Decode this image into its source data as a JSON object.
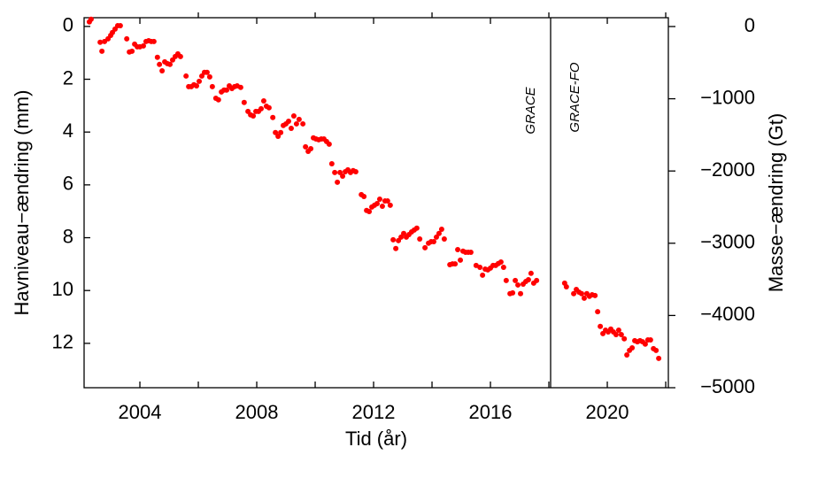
{
  "chart_data": {
    "type": "scatter",
    "xlabel": "Tid (år)",
    "ylabel": "Havniveau−ændring (mm)",
    "y2label": "Masse−ændring (Gt)",
    "annotations": [
      "GRACE",
      "GRACE-FO"
    ],
    "mission_boundary": 2018.06,
    "xlim": [
      2002.09,
      2022.09
    ],
    "xticks": [
      2004,
      2008,
      2012,
      2016,
      2020
    ],
    "xminorticks": [
      2006,
      2010,
      2014,
      2018,
      2022
    ],
    "ylim": [
      13.68,
      -0.33
    ],
    "yticks": [
      0,
      2,
      4,
      6,
      8,
      10,
      12
    ],
    "y2lim": [
      -5000,
      122
    ],
    "y2ticks": [
      0,
      {
        "value": -1000,
        "label": "−1000"
      },
      {
        "value": -2000,
        "label": "−2000"
      },
      {
        "value": -3000,
        "label": "−3000"
      },
      {
        "value": -4000,
        "label": "−4000"
      },
      {
        "value": -5000,
        "label": "−5000"
      }
    ],
    "grid": false,
    "series": [
      {
        "name": "Havniveau",
        "color": "#ff0000",
        "x": [
          2002.27,
          2002.33,
          2002.64,
          2002.7,
          2002.79,
          2002.91,
          2003.0,
          2003.06,
          2003.15,
          2003.24,
          2003.33,
          2003.55,
          2003.64,
          2003.73,
          2003.82,
          2003.91,
          2004.0,
          2004.12,
          2004.21,
          2004.3,
          2004.39,
          2004.48,
          2004.6,
          2004.67,
          2004.76,
          2004.85,
          2004.94,
          2005.03,
          2005.12,
          2005.21,
          2005.3,
          2005.39,
          2005.58,
          2005.67,
          2005.76,
          2005.85,
          2005.94,
          2006.03,
          2006.12,
          2006.21,
          2006.3,
          2006.39,
          2006.48,
          2006.6,
          2006.69,
          2006.79,
          2006.88,
          2006.97,
          2007.06,
          2007.15,
          2007.24,
          2007.33,
          2007.45,
          2007.57,
          2007.7,
          2007.79,
          2007.88,
          2007.97,
          2008.06,
          2008.15,
          2008.24,
          2008.33,
          2008.42,
          2008.55,
          2008.64,
          2008.73,
          2008.82,
          2008.91,
          2009.0,
          2009.09,
          2009.18,
          2009.27,
          2009.36,
          2009.45,
          2009.58,
          2009.67,
          2009.76,
          2009.85,
          2009.94,
          2010.03,
          2010.12,
          2010.21,
          2010.3,
          2010.39,
          2010.48,
          2010.57,
          2010.67,
          2010.76,
          2010.85,
          2010.94,
          2011.03,
          2011.12,
          2011.21,
          2011.3,
          2011.39,
          2011.58,
          2011.67,
          2011.76,
          2011.85,
          2011.94,
          2012.03,
          2012.12,
          2012.21,
          2012.3,
          2012.39,
          2012.48,
          2012.57,
          2012.67,
          2012.76,
          2012.85,
          2012.94,
          2013.03,
          2013.12,
          2013.21,
          2013.3,
          2013.39,
          2013.48,
          2013.58,
          2013.76,
          2013.88,
          2013.97,
          2014.06,
          2014.15,
          2014.24,
          2014.33,
          2014.42,
          2014.61,
          2014.7,
          2014.79,
          2014.88,
          2014.97,
          2015.06,
          2015.15,
          2015.24,
          2015.33,
          2015.51,
          2015.64,
          2015.73,
          2015.82,
          2015.91,
          2016.0,
          2016.09,
          2016.18,
          2016.27,
          2016.36,
          2016.45,
          2016.54,
          2016.67,
          2016.76,
          2016.85,
          2016.94,
          2017.03,
          2017.12,
          2017.21,
          2017.3,
          2017.39,
          2017.48,
          2017.58,
          2018.54,
          2018.6,
          2018.85,
          2018.94,
          2019.03,
          2019.12,
          2019.21,
          2019.3,
          2019.39,
          2019.48,
          2019.58,
          2019.67,
          2019.76,
          2019.85,
          2019.94,
          2020.03,
          2020.12,
          2020.21,
          2020.3,
          2020.39,
          2020.48,
          2020.58,
          2020.67,
          2020.76,
          2020.85,
          2020.94,
          2021.03,
          2021.12,
          2021.21,
          2021.3,
          2021.39,
          2021.48,
          2021.58,
          2021.67,
          2021.76
        ],
        "values": [
          -0.17,
          -0.27,
          0.6,
          0.94,
          0.57,
          0.47,
          0.34,
          0.23,
          0.1,
          -0.03,
          -0.03,
          0.47,
          0.97,
          0.94,
          0.67,
          0.77,
          0.77,
          0.74,
          0.57,
          0.54,
          0.57,
          0.57,
          1.17,
          1.44,
          1.68,
          1.34,
          1.41,
          1.44,
          1.27,
          1.14,
          1.04,
          1.14,
          1.88,
          2.28,
          2.28,
          2.21,
          2.25,
          2.08,
          1.88,
          1.74,
          1.74,
          1.91,
          2.28,
          2.72,
          2.78,
          2.48,
          2.41,
          2.41,
          2.25,
          2.35,
          2.28,
          2.25,
          2.31,
          2.88,
          3.22,
          3.35,
          3.39,
          3.22,
          3.22,
          3.12,
          2.82,
          3.02,
          3.08,
          3.45,
          4.02,
          4.16,
          4.02,
          3.75,
          3.69,
          3.59,
          3.86,
          3.39,
          3.69,
          3.52,
          3.69,
          4.56,
          4.73,
          4.63,
          4.22,
          4.26,
          4.29,
          4.26,
          4.26,
          4.36,
          4.46,
          5.2,
          5.53,
          5.9,
          5.53,
          5.67,
          5.5,
          5.43,
          5.53,
          5.46,
          5.5,
          6.37,
          6.44,
          6.97,
          7.01,
          6.84,
          6.77,
          6.71,
          6.54,
          6.81,
          6.61,
          6.61,
          6.77,
          8.08,
          8.41,
          8.11,
          7.98,
          7.84,
          7.98,
          7.88,
          7.78,
          7.71,
          7.64,
          8.05,
          8.38,
          8.21,
          8.15,
          8.15,
          7.98,
          7.84,
          7.68,
          8.05,
          9.02,
          8.99,
          8.99,
          8.45,
          8.85,
          8.51,
          8.55,
          8.55,
          8.55,
          9.05,
          9.12,
          9.42,
          9.19,
          9.22,
          9.15,
          9.05,
          9.05,
          8.98,
          8.92,
          9.12,
          9.62,
          10.12,
          10.09,
          9.62,
          9.79,
          10.12,
          9.76,
          9.66,
          9.59,
          9.35,
          9.72,
          9.62,
          9.72,
          9.86,
          10.12,
          9.96,
          10.06,
          10.12,
          10.29,
          10.12,
          10.22,
          10.16,
          10.19,
          10.8,
          11.36,
          11.63,
          11.5,
          11.57,
          11.46,
          11.57,
          11.67,
          11.5,
          11.67,
          11.83,
          12.44,
          12.27,
          12.17,
          11.9,
          11.94,
          11.9,
          11.94,
          12.03,
          11.87,
          11.87,
          12.2,
          12.27,
          12.57
        ]
      }
    ]
  }
}
